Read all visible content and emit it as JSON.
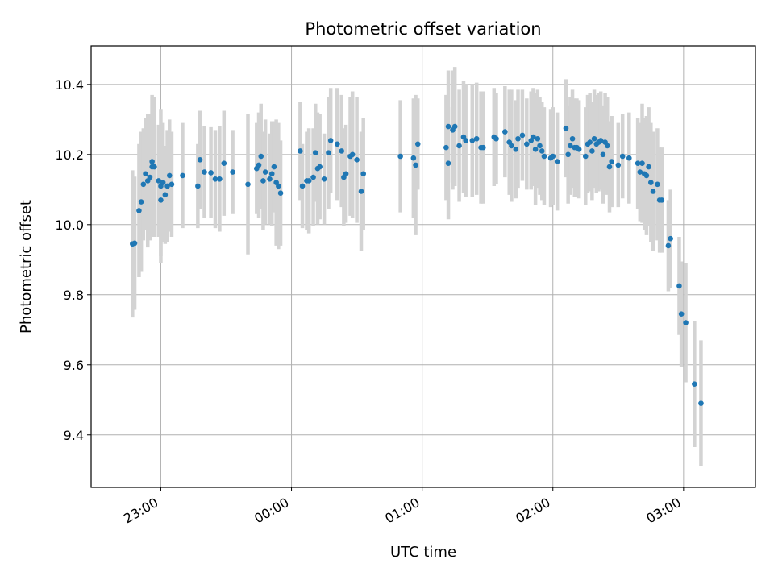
{
  "chart_data": {
    "type": "scatter",
    "title": "Photometric offset variation",
    "xlabel": "UTC time",
    "ylabel": "Photometric offset",
    "x_unit": "UTC time (HH:MM)",
    "xlim": [
      "22:28",
      "03:33"
    ],
    "ylim": [
      9.25,
      10.51
    ],
    "x_ticks": [
      "23:00",
      "00:00",
      "01:00",
      "02:00",
      "03:00"
    ],
    "y_ticks": [
      "9.4",
      "9.6",
      "9.8",
      "10.0",
      "10.2",
      "10.4"
    ],
    "grid": true,
    "marker_color": "#1f77b4",
    "errorbar_color": "#d3d3d3",
    "points": [
      [
        "22:47",
        9.945,
        0.21
      ],
      [
        "22:48",
        9.947,
        0.19
      ],
      [
        "22:50",
        10.04,
        0.19
      ],
      [
        "22:51",
        10.065,
        0.2
      ],
      [
        "22:52",
        10.115,
        0.16
      ],
      [
        "22:53",
        10.145,
        0.16
      ],
      [
        "22:54",
        10.125,
        0.19
      ],
      [
        "22:55",
        10.135,
        0.18
      ],
      [
        "22:56",
        10.18,
        0.19
      ],
      [
        "22:56",
        10.165,
        0.2
      ],
      [
        "22:57",
        10.165,
        0.2
      ],
      [
        "22:59",
        10.125,
        0.16
      ],
      [
        "23:00",
        10.07,
        0.16
      ],
      [
        "23:00",
        10.11,
        0.22
      ],
      [
        "23:01",
        10.12,
        0.17
      ],
      [
        "23:02",
        10.085,
        0.14
      ],
      [
        "23:03",
        10.11,
        0.16
      ],
      [
        "23:04",
        10.14,
        0.16
      ],
      [
        "23:05",
        10.115,
        0.15
      ],
      [
        "23:10",
        10.14,
        0.15
      ],
      [
        "23:17",
        10.11,
        0.12
      ],
      [
        "23:18",
        10.185,
        0.14
      ],
      [
        "23:20",
        10.15,
        0.13
      ],
      [
        "23:23",
        10.148,
        0.13
      ],
      [
        "23:25",
        10.13,
        0.14
      ],
      [
        "23:27",
        10.13,
        0.15
      ],
      [
        "23:29",
        10.175,
        0.15
      ],
      [
        "23:33",
        10.15,
        0.12
      ],
      [
        "23:40",
        10.115,
        0.2
      ],
      [
        "23:44",
        10.16,
        0.13
      ],
      [
        "23:45",
        10.17,
        0.15
      ],
      [
        "23:46",
        10.195,
        0.15
      ],
      [
        "23:47",
        10.125,
        0.14
      ],
      [
        "23:48",
        10.15,
        0.15
      ],
      [
        "23:50",
        10.13,
        0.13
      ],
      [
        "23:51",
        10.145,
        0.15
      ],
      [
        "23:52",
        10.165,
        0.13
      ],
      [
        "23:53",
        10.12,
        0.18
      ],
      [
        "23:54",
        10.11,
        0.18
      ],
      [
        "23:55",
        10.09,
        0.15
      ],
      [
        "24:04",
        10.21,
        0.14
      ],
      [
        "24:05",
        10.11,
        0.12
      ],
      [
        "24:07",
        10.125,
        0.14
      ],
      [
        "24:08",
        10.125,
        0.15
      ],
      [
        "24:10",
        10.135,
        0.14
      ],
      [
        "24:11",
        10.205,
        0.14
      ],
      [
        "24:12",
        10.16,
        0.16
      ],
      [
        "24:13",
        10.165,
        0.15
      ],
      [
        "24:15",
        10.13,
        0.13
      ],
      [
        "24:17",
        10.205,
        0.16
      ],
      [
        "24:18",
        10.24,
        0.15
      ],
      [
        "24:21",
        10.23,
        0.16
      ],
      [
        "24:23",
        10.21,
        0.16
      ],
      [
        "24:24",
        10.135,
        0.14
      ],
      [
        "24:25",
        10.145,
        0.14
      ],
      [
        "24:27",
        10.195,
        0.17
      ],
      [
        "24:28",
        10.2,
        0.18
      ],
      [
        "24:30",
        10.185,
        0.18
      ],
      [
        "24:32",
        10.095,
        0.17
      ],
      [
        "24:33",
        10.145,
        0.16
      ],
      [
        "24:50",
        10.195,
        0.16
      ],
      [
        "24:56",
        10.19,
        0.17
      ],
      [
        "24:57",
        10.17,
        0.2
      ],
      [
        "24:58",
        10.23,
        0.13
      ],
      [
        "25:11",
        10.22,
        0.15
      ],
      [
        "25:12",
        10.175,
        0.16
      ],
      [
        "25:12",
        10.28,
        0.16
      ],
      [
        "25:14",
        10.27,
        0.17
      ],
      [
        "25:15",
        10.28,
        0.17
      ],
      [
        "25:17",
        10.225,
        0.16
      ],
      [
        "25:19",
        10.25,
        0.16
      ],
      [
        "25:20",
        10.24,
        0.16
      ],
      [
        "25:23",
        10.24,
        0.16
      ],
      [
        "25:25",
        10.245,
        0.16
      ],
      [
        "25:27",
        10.22,
        0.16
      ],
      [
        "25:28",
        10.22,
        0.16
      ],
      [
        "25:33",
        10.25,
        0.14
      ],
      [
        "25:34",
        10.245,
        0.13
      ],
      [
        "25:38",
        10.265,
        0.13
      ],
      [
        "25:40",
        10.235,
        0.15
      ],
      [
        "25:41",
        10.225,
        0.16
      ],
      [
        "25:43",
        10.215,
        0.14
      ],
      [
        "25:44",
        10.245,
        0.14
      ],
      [
        "25:46",
        10.255,
        0.13
      ],
      [
        "25:48",
        10.23,
        0.13
      ],
      [
        "25:50",
        10.24,
        0.14
      ],
      [
        "25:51",
        10.25,
        0.14
      ],
      [
        "25:52",
        10.215,
        0.16
      ],
      [
        "25:53",
        10.245,
        0.14
      ],
      [
        "25:54",
        10.225,
        0.14
      ],
      [
        "25:55",
        10.21,
        0.14
      ],
      [
        "25:56",
        10.195,
        0.14
      ],
      [
        "25:59",
        10.19,
        0.14
      ],
      [
        "26:00",
        10.195,
        0.14
      ],
      [
        "26:02",
        10.18,
        0.14
      ],
      [
        "26:06",
        10.275,
        0.14
      ],
      [
        "26:07",
        10.2,
        0.14
      ],
      [
        "26:08",
        10.225,
        0.14
      ],
      [
        "26:09",
        10.245,
        0.14
      ],
      [
        "26:10",
        10.22,
        0.14
      ],
      [
        "26:11",
        10.22,
        0.14
      ],
      [
        "26:12",
        10.215,
        0.14
      ],
      [
        "26:15",
        10.195,
        0.14
      ],
      [
        "26:16",
        10.23,
        0.14
      ],
      [
        "26:17",
        10.235,
        0.14
      ],
      [
        "26:18",
        10.21,
        0.14
      ],
      [
        "26:19",
        10.245,
        0.14
      ],
      [
        "26:20",
        10.23,
        0.14
      ],
      [
        "26:21",
        10.235,
        0.14
      ],
      [
        "26:22",
        10.24,
        0.14
      ],
      [
        "26:23",
        10.2,
        0.14
      ],
      [
        "26:24",
        10.235,
        0.14
      ],
      [
        "26:25",
        10.225,
        0.14
      ],
      [
        "26:26",
        10.165,
        0.13
      ],
      [
        "26:27",
        10.18,
        0.13
      ],
      [
        "26:30",
        10.17,
        0.12
      ],
      [
        "26:32",
        10.195,
        0.12
      ],
      [
        "26:35",
        10.19,
        0.13
      ],
      [
        "26:39",
        10.175,
        0.13
      ],
      [
        "26:40",
        10.15,
        0.14
      ],
      [
        "26:41",
        10.175,
        0.17
      ],
      [
        "26:42",
        10.145,
        0.16
      ],
      [
        "26:43",
        10.14,
        0.17
      ],
      [
        "26:44",
        10.165,
        0.17
      ],
      [
        "26:45",
        10.12,
        0.17
      ],
      [
        "26:46",
        10.095,
        0.17
      ],
      [
        "26:48",
        10.115,
        0.16
      ],
      [
        "26:49",
        10.07,
        0.15
      ],
      [
        "26:50",
        10.07,
        0.15
      ],
      [
        "26:53",
        9.94,
        0.13
      ],
      [
        "26:54",
        9.96,
        0.14
      ],
      [
        "26:58",
        9.825,
        0.14
      ],
      [
        "26:59",
        9.745,
        0.15
      ],
      [
        "27:01",
        9.72,
        0.17
      ],
      [
        "27:05",
        9.545,
        0.18
      ],
      [
        "27:08",
        9.49,
        0.18
      ]
    ]
  }
}
